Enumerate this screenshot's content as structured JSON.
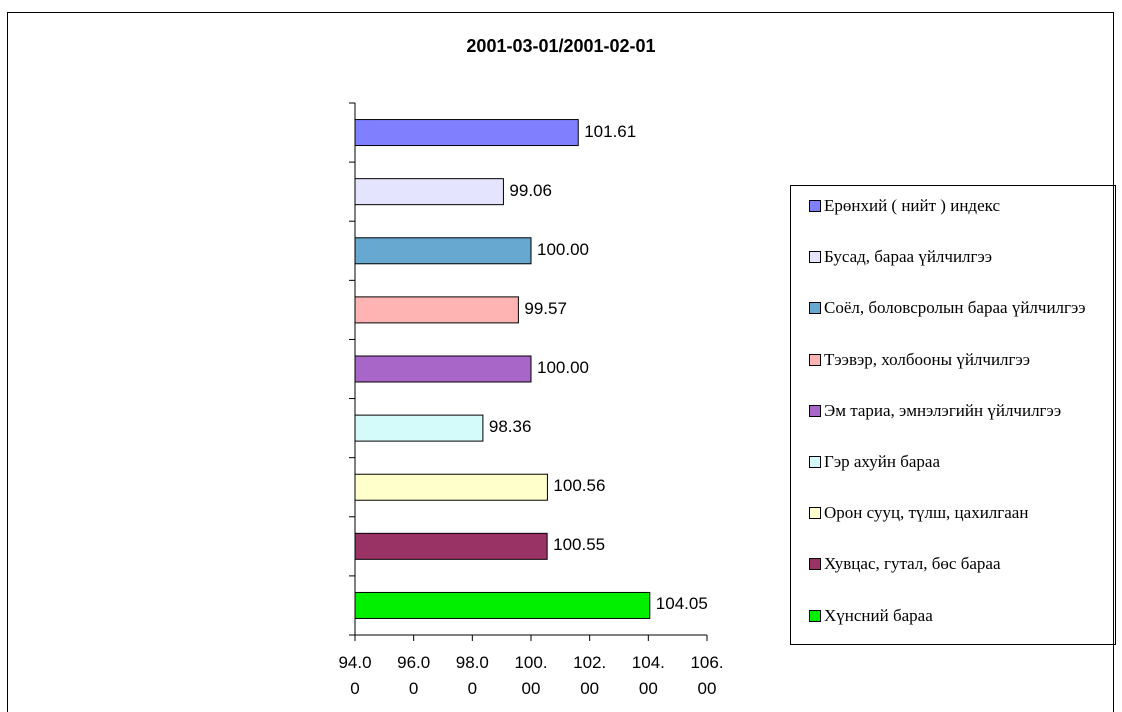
{
  "chart_data": {
    "type": "bar",
    "orientation": "horizontal",
    "title": "2001-03-01/2001-02-01",
    "categories": [
      "Ерөнхий ( нийт ) индекс",
      "Бусад, бараа үйлчилгээ",
      "Соёл, боловсролын бараа үйлчилгээ",
      "Тээвэр, холбооны үйлчилгээ",
      "Эм тариа, эмнэлэгийн үйлчилгээ",
      "Гэр ахуйн бараа",
      "Орон сууц, түлш, цахилгаан",
      "Хувцас, гутал, бөс бараа",
      "Хүнсний бараа"
    ],
    "values": [
      101.61,
      99.06,
      100,
      99.57,
      100,
      98.36,
      100.56,
      100.55,
      104.05
    ],
    "value_labels": [
      "101.61",
      "99.06",
      "100.00",
      "99.57",
      "100.00",
      "98.36",
      "100.56",
      "100.55",
      "104.05"
    ],
    "colors": [
      "#8080ff",
      "#e4e4ff",
      "#66a8d0",
      "#ffb4b4",
      "#a866c8",
      "#d4fafa",
      "#ffffcc",
      "#993366",
      "#00f000"
    ],
    "xlim": [
      94,
      106
    ],
    "xticks": [
      {
        "value": 94,
        "label": "94.00"
      },
      {
        "value": 96,
        "label": "96.00"
      },
      {
        "value": 98,
        "label": "98.00"
      },
      {
        "value": 100,
        "label": "100.00"
      },
      {
        "value": 102,
        "label": "102.00"
      },
      {
        "value": 104,
        "label": "104.00"
      },
      {
        "value": 106,
        "label": "106.00"
      }
    ],
    "legend": "right"
  }
}
